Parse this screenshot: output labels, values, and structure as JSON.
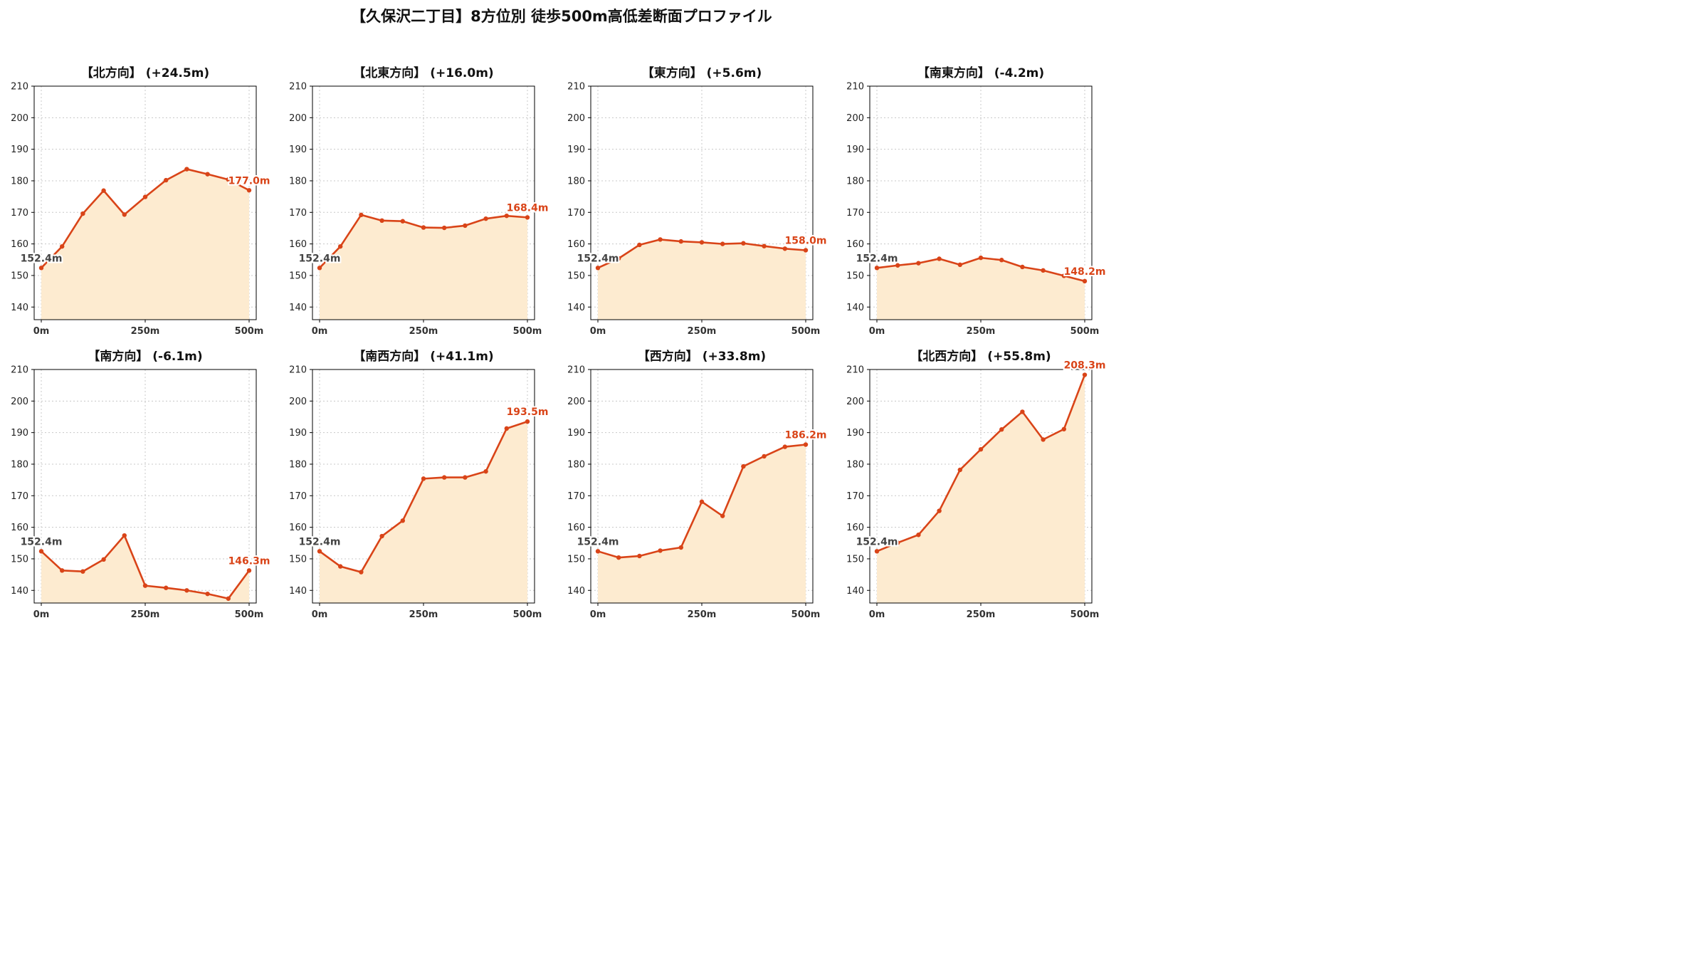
{
  "figure": {
    "title": "【久保沢二丁目】8方位別 徒歩500m高低差断面プロファイル"
  },
  "colors": {
    "line": "#d94418",
    "fill": "#fdebd0",
    "start_label": "#444444",
    "end_label": "#d94418",
    "grid": "#c8c8c8"
  },
  "chart_data": [
    {
      "type": "area",
      "title": "【北方向】 (+24.5m)",
      "x": [
        0,
        50,
        100,
        150,
        200,
        250,
        300,
        350,
        400,
        450,
        500
      ],
      "y": [
        152.4,
        159.2,
        169.6,
        176.9,
        169.3,
        174.9,
        180.2,
        183.7,
        182.1,
        180.4,
        177.0
      ],
      "xticks": [
        "0m",
        "250m",
        "500m"
      ],
      "xtick_values": [
        0,
        250,
        500
      ],
      "yticks": [
        140,
        150,
        160,
        170,
        180,
        190,
        200,
        210
      ],
      "ylim": [
        136,
        210
      ],
      "start_label": "152.4m",
      "end_label": "177.0m",
      "grid": true
    },
    {
      "type": "area",
      "title": "【北東方向】 (+16.0m)",
      "x": [
        0,
        50,
        100,
        150,
        200,
        250,
        300,
        350,
        400,
        450,
        500
      ],
      "y": [
        152.4,
        159.2,
        169.2,
        167.4,
        167.2,
        165.2,
        165.1,
        165.8,
        168.0,
        168.9,
        168.4
      ],
      "xticks": [
        "0m",
        "250m",
        "500m"
      ],
      "xtick_values": [
        0,
        250,
        500
      ],
      "yticks": [
        140,
        150,
        160,
        170,
        180,
        190,
        200,
        210
      ],
      "ylim": [
        136,
        210
      ],
      "start_label": "152.4m",
      "end_label": "168.4m",
      "grid": true
    },
    {
      "type": "area",
      "title": "【東方向】 (+5.6m)",
      "x": [
        0,
        50,
        100,
        150,
        200,
        250,
        300,
        350,
        400,
        450,
        500
      ],
      "y": [
        152.4,
        155.4,
        159.7,
        161.4,
        160.8,
        160.5,
        160.0,
        160.2,
        159.3,
        158.5,
        158.0
      ],
      "xticks": [
        "0m",
        "250m",
        "500m"
      ],
      "xtick_values": [
        0,
        250,
        500
      ],
      "yticks": [
        140,
        150,
        160,
        170,
        180,
        190,
        200,
        210
      ],
      "ylim": [
        136,
        210
      ],
      "start_label": "152.4m",
      "end_label": "158.0m",
      "grid": true
    },
    {
      "type": "area",
      "title": "【南東方向】 (-4.2m)",
      "x": [
        0,
        50,
        100,
        150,
        200,
        250,
        300,
        350,
        400,
        450,
        500
      ],
      "y": [
        152.4,
        153.2,
        153.9,
        155.3,
        153.4,
        155.6,
        154.9,
        152.7,
        151.6,
        149.9,
        148.2
      ],
      "xticks": [
        "0m",
        "250m",
        "500m"
      ],
      "xtick_values": [
        0,
        250,
        500
      ],
      "yticks": [
        140,
        150,
        160,
        170,
        180,
        190,
        200,
        210
      ],
      "ylim": [
        136,
        210
      ],
      "start_label": "152.4m",
      "end_label": "148.2m",
      "grid": true
    },
    {
      "type": "area",
      "title": "【南方向】 (-6.1m)",
      "x": [
        0,
        50,
        100,
        150,
        200,
        250,
        300,
        350,
        400,
        450,
        500
      ],
      "y": [
        152.4,
        146.3,
        146.0,
        149.8,
        157.4,
        141.5,
        140.8,
        140.0,
        138.9,
        137.4,
        146.3
      ],
      "xticks": [
        "0m",
        "250m",
        "500m"
      ],
      "xtick_values": [
        0,
        250,
        500
      ],
      "yticks": [
        140,
        150,
        160,
        170,
        180,
        190,
        200,
        210
      ],
      "ylim": [
        136,
        210
      ],
      "start_label": "152.4m",
      "end_label": "146.3m",
      "grid": true
    },
    {
      "type": "area",
      "title": "【南西方向】 (+41.1m)",
      "x": [
        0,
        50,
        100,
        150,
        200,
        250,
        300,
        350,
        400,
        450,
        500
      ],
      "y": [
        152.4,
        147.6,
        145.8,
        157.2,
        162.1,
        175.4,
        175.8,
        175.8,
        177.7,
        191.3,
        193.5
      ],
      "xticks": [
        "0m",
        "250m",
        "500m"
      ],
      "xtick_values": [
        0,
        250,
        500
      ],
      "yticks": [
        140,
        150,
        160,
        170,
        180,
        190,
        200,
        210
      ],
      "ylim": [
        136,
        210
      ],
      "start_label": "152.4m",
      "end_label": "193.5m",
      "grid": true
    },
    {
      "type": "area",
      "title": "【西方向】 (+33.8m)",
      "x": [
        0,
        50,
        100,
        150,
        200,
        250,
        300,
        350,
        400,
        450,
        500
      ],
      "y": [
        152.4,
        150.4,
        150.9,
        152.6,
        153.6,
        168.1,
        163.6,
        179.3,
        182.5,
        185.5,
        186.2
      ],
      "xticks": [
        "0m",
        "250m",
        "500m"
      ],
      "xtick_values": [
        0,
        250,
        500
      ],
      "yticks": [
        140,
        150,
        160,
        170,
        180,
        190,
        200,
        210
      ],
      "ylim": [
        136,
        210
      ],
      "start_label": "152.4m",
      "end_label": "186.2m",
      "grid": true
    },
    {
      "type": "area",
      "title": "【北西方向】 (+55.8m)",
      "x": [
        0,
        50,
        100,
        150,
        200,
        250,
        300,
        350,
        400,
        450,
        500
      ],
      "y": [
        152.4,
        155.1,
        157.6,
        165.2,
        178.2,
        184.7,
        191.0,
        196.6,
        187.8,
        191.1,
        208.3
      ],
      "xticks": [
        "0m",
        "250m",
        "500m"
      ],
      "xtick_values": [
        0,
        250,
        500
      ],
      "yticks": [
        140,
        150,
        160,
        170,
        180,
        190,
        200,
        210
      ],
      "ylim": [
        136,
        210
      ],
      "start_label": "152.4m",
      "end_label": "208.3m",
      "grid": true
    }
  ]
}
